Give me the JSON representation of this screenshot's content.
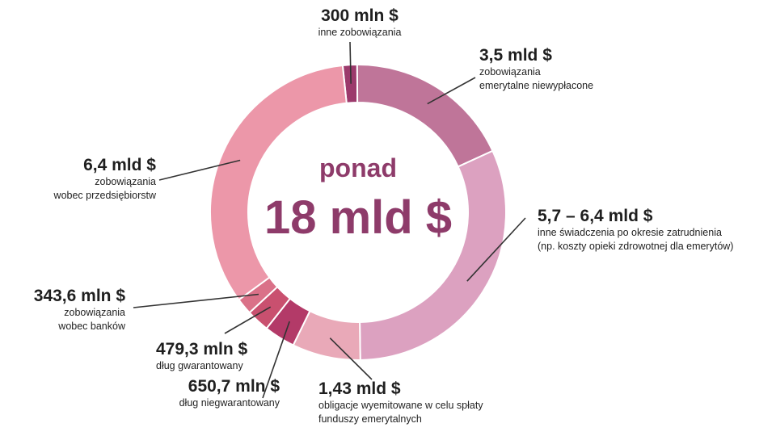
{
  "chart_data": {
    "type": "pie",
    "center": {
      "top_text": "ponad",
      "main_text": "18 mld $",
      "color": "#8e3b6a"
    },
    "slices": [
      {
        "value_text": "300 mln $",
        "value": 0.3,
        "desc": [
          "inne zobowiązania"
        ],
        "color": "#9c3a6c"
      },
      {
        "value_text": "3,5 mld $",
        "value": 3.5,
        "desc": [
          "zobowiązania",
          "emerytalne niewypłacone"
        ],
        "color": "#bf7599"
      },
      {
        "value_text": "5,7 – 6,4 mld $",
        "value": 6.05,
        "desc": [
          "inne świadczenia po okresie zatrudnienia",
          "(np. koszty opieki zdrowotnej dla emerytów)"
        ],
        "color": "#dca1c0"
      },
      {
        "value_text": "1,43 mld $",
        "value": 1.43,
        "desc": [
          "obligacje wyemitowane w celu spłaty",
          "funduszy emerytalnych"
        ],
        "color": "#e9a9b8"
      },
      {
        "value_text": "650,7 mln $",
        "value": 0.6507,
        "desc": [
          "dług niegwarantowany"
        ],
        "color": "#b33a68"
      },
      {
        "value_text": "479,3 mln $",
        "value": 0.4793,
        "desc": [
          "dług gwarantowany"
        ],
        "color": "#c9506f"
      },
      {
        "value_text": "343,6 mln $",
        "value": 0.3436,
        "desc": [
          "zobowiązania",
          "wobec banków"
        ],
        "color": "#da7188"
      },
      {
        "value_text": "6,4 mld $",
        "value": 6.4,
        "desc": [
          "zobowiązania",
          "wobec przedsiębiorstw"
        ],
        "color": "#ec97a9"
      }
    ]
  }
}
